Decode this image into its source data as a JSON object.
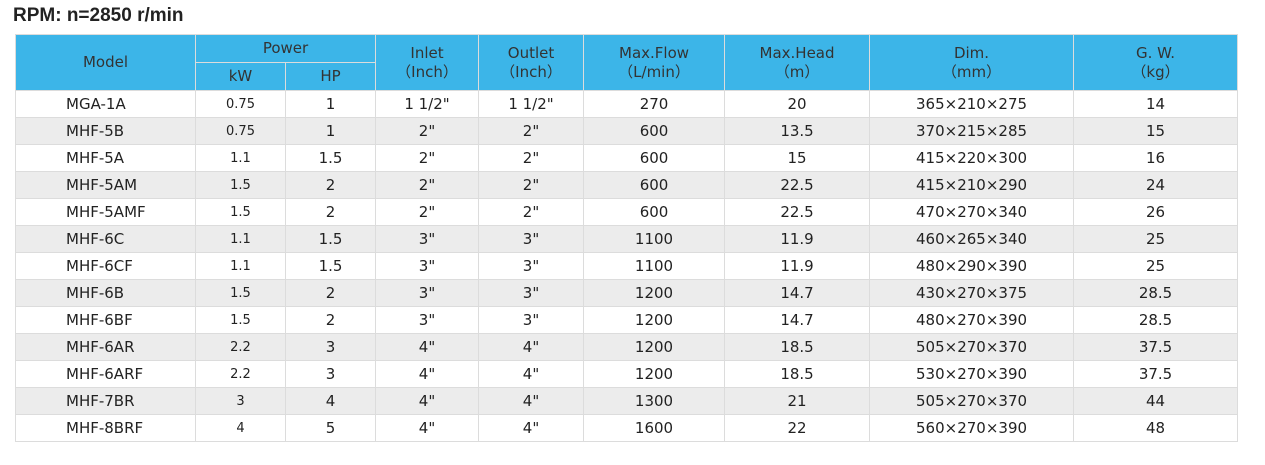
{
  "title": "RPM: n=2850 r/min",
  "headers": {
    "model": "Model",
    "power": "Power",
    "kw": "kW",
    "hp": "HP",
    "inlet": "Inlet",
    "inlet_unit": "（Inch）",
    "outlet": "Outlet",
    "outlet_unit": "（Inch）",
    "flow": "Max.Flow",
    "flow_unit": "（L/min）",
    "head": "Max.Head",
    "head_unit": "（m）",
    "dim": "Dim.",
    "dim_unit": "（mm）",
    "gw": "G. W.",
    "gw_unit": "（kg）"
  },
  "rows": [
    [
      "MGA-1A",
      "0.75",
      "1",
      "1 1/2\"",
      "1 1/2\"",
      "270",
      "20",
      "365×210×275",
      "14"
    ],
    [
      "MHF-5B",
      "0.75",
      "1",
      "2\"",
      "2\"",
      "600",
      "13.5",
      "370×215×285",
      "15"
    ],
    [
      "MHF-5A",
      "1.1",
      "1.5",
      "2\"",
      "2\"",
      "600",
      "15",
      "415×220×300",
      "16"
    ],
    [
      "MHF-5AM",
      "1.5",
      "2",
      "2\"",
      "2\"",
      "600",
      "22.5",
      "415×210×290",
      "24"
    ],
    [
      "MHF-5AMF",
      "1.5",
      "2",
      "2\"",
      "2\"",
      "600",
      "22.5",
      "470×270×340",
      "26"
    ],
    [
      "MHF-6C",
      "1.1",
      "1.5",
      "3\"",
      "3\"",
      "1100",
      "11.9",
      "460×265×340",
      "25"
    ],
    [
      "MHF-6CF",
      "1.1",
      "1.5",
      "3\"",
      "3\"",
      "1100",
      "11.9",
      "480×290×390",
      "25"
    ],
    [
      "MHF-6B",
      "1.5",
      "2",
      "3\"",
      "3\"",
      "1200",
      "14.7",
      "430×270×375",
      "28.5"
    ],
    [
      "MHF-6BF",
      "1.5",
      "2",
      "3\"",
      "3\"",
      "1200",
      "14.7",
      "480×270×390",
      "28.5"
    ],
    [
      "MHF-6AR",
      "2.2",
      "3",
      "4\"",
      "4\"",
      "1200",
      "18.5",
      "505×270×370",
      "37.5"
    ],
    [
      "MHF-6ARF",
      "2.2",
      "3",
      "4\"",
      "4\"",
      "1200",
      "18.5",
      "530×270×390",
      "37.5"
    ],
    [
      "MHF-7BR",
      "3",
      "4",
      "4\"",
      "4\"",
      "1300",
      "21",
      "505×270×370",
      "44"
    ],
    [
      "MHF-8BRF",
      "4",
      "5",
      "4\"",
      "4\"",
      "1600",
      "22",
      "560×270×390",
      "48"
    ]
  ]
}
